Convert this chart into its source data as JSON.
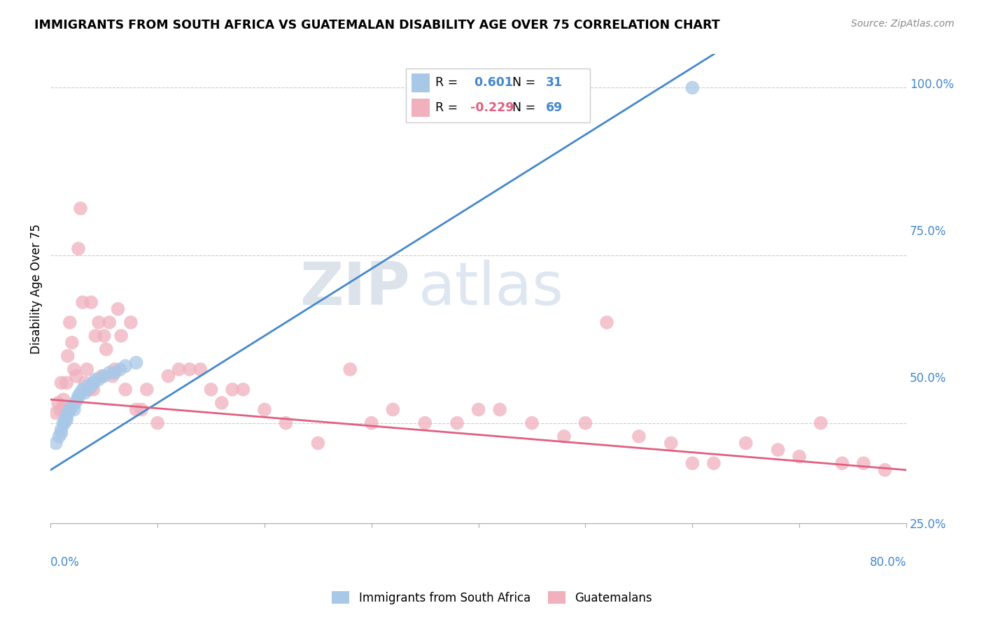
{
  "title": "IMMIGRANTS FROM SOUTH AFRICA VS GUATEMALAN DISABILITY AGE OVER 75 CORRELATION CHART",
  "source": "Source: ZipAtlas.com",
  "ylabel": "Disability Age Over 75",
  "xlim": [
    0.0,
    0.8
  ],
  "ylim": [
    0.35,
    1.05
  ],
  "blue_r": 0.601,
  "blue_n": 31,
  "pink_r": -0.229,
  "pink_n": 69,
  "blue_color": "#a8c8e8",
  "pink_color": "#f0b0be",
  "blue_line_color": "#4488cc",
  "pink_line_color": "#e06080",
  "watermark_zip": "ZIP",
  "watermark_atlas": "atlas",
  "blue_x": [
    0.005,
    0.008,
    0.01,
    0.01,
    0.012,
    0.013,
    0.014,
    0.015,
    0.015,
    0.016,
    0.018,
    0.02,
    0.022,
    0.023,
    0.025,
    0.026,
    0.028,
    0.03,
    0.032,
    0.035,
    0.038,
    0.04,
    0.042,
    0.045,
    0.05,
    0.055,
    0.06,
    0.065,
    0.07,
    0.08,
    0.6
  ],
  "blue_y": [
    0.47,
    0.48,
    0.485,
    0.49,
    0.5,
    0.5,
    0.505,
    0.51,
    0.505,
    0.515,
    0.52,
    0.525,
    0.52,
    0.53,
    0.535,
    0.54,
    0.545,
    0.55,
    0.545,
    0.555,
    0.555,
    0.56,
    0.565,
    0.565,
    0.57,
    0.575,
    0.575,
    0.58,
    0.585,
    0.59,
    1.0
  ],
  "pink_x": [
    0.005,
    0.007,
    0.009,
    0.01,
    0.012,
    0.013,
    0.015,
    0.016,
    0.018,
    0.02,
    0.022,
    0.024,
    0.026,
    0.028,
    0.03,
    0.032,
    0.034,
    0.036,
    0.038,
    0.04,
    0.042,
    0.045,
    0.048,
    0.05,
    0.052,
    0.055,
    0.058,
    0.06,
    0.063,
    0.066,
    0.07,
    0.075,
    0.08,
    0.085,
    0.09,
    0.1,
    0.11,
    0.12,
    0.13,
    0.14,
    0.15,
    0.16,
    0.17,
    0.18,
    0.2,
    0.22,
    0.25,
    0.28,
    0.3,
    0.32,
    0.35,
    0.38,
    0.4,
    0.42,
    0.45,
    0.48,
    0.5,
    0.52,
    0.55,
    0.58,
    0.6,
    0.62,
    0.65,
    0.68,
    0.7,
    0.72,
    0.74,
    0.76,
    0.78
  ],
  "pink_y": [
    0.515,
    0.53,
    0.52,
    0.56,
    0.535,
    0.52,
    0.56,
    0.6,
    0.65,
    0.62,
    0.58,
    0.57,
    0.76,
    0.82,
    0.68,
    0.56,
    0.58,
    0.55,
    0.68,
    0.55,
    0.63,
    0.65,
    0.57,
    0.63,
    0.61,
    0.65,
    0.57,
    0.58,
    0.67,
    0.63,
    0.55,
    0.65,
    0.52,
    0.52,
    0.55,
    0.5,
    0.57,
    0.58,
    0.58,
    0.58,
    0.55,
    0.53,
    0.55,
    0.55,
    0.52,
    0.5,
    0.47,
    0.58,
    0.5,
    0.52,
    0.5,
    0.5,
    0.52,
    0.52,
    0.5,
    0.48,
    0.5,
    0.65,
    0.48,
    0.47,
    0.44,
    0.44,
    0.47,
    0.46,
    0.45,
    0.5,
    0.44,
    0.44,
    0.43
  ],
  "blue_line_x0": 0.0,
  "blue_line_x1": 0.62,
  "blue_line_y0": 0.43,
  "blue_line_y1": 1.05,
  "pink_line_x0": 0.0,
  "pink_line_x1": 0.8,
  "pink_line_y0": 0.535,
  "pink_line_y1": 0.43,
  "right_ytick_vals": [
    0.5,
    0.75,
    1.0
  ],
  "right_yticklabels": [
    "50.0%",
    "75.0%",
    "100.0%"
  ],
  "right_ytick_25": 0.25,
  "right_ytick_25_label": "25.0%"
}
